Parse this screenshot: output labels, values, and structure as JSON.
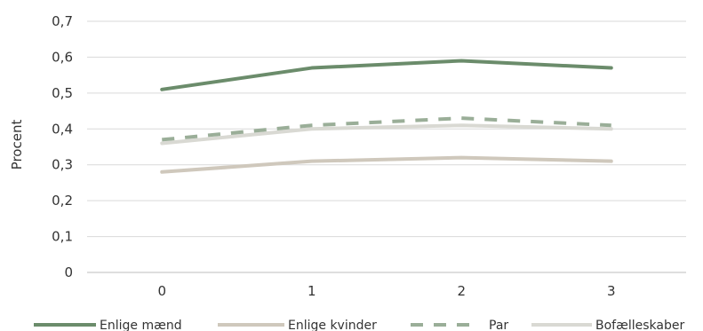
{
  "chart_data": {
    "type": "line",
    "x": [
      "0",
      "1",
      "2",
      "3"
    ],
    "ylabel": "Procent",
    "ylim": [
      0,
      0.7
    ],
    "yticks": [
      "0",
      "0,1",
      "0,2",
      "0,3",
      "0,4",
      "0,5",
      "0,6",
      "0,7"
    ],
    "grid": true,
    "legend": "bottom",
    "series": [
      {
        "name": "Enlige mænd",
        "values": [
          0.51,
          0.57,
          0.59,
          0.57
        ],
        "color": "#6b8c6b",
        "dash": false
      },
      {
        "name": "Enlige kvinder",
        "values": [
          0.28,
          0.31,
          0.32,
          0.31
        ],
        "color": "#cfc8bc",
        "dash": false
      },
      {
        "name": "Par",
        "values": [
          0.37,
          0.41,
          0.43,
          0.41
        ],
        "color": "#9aae98",
        "dash": true
      },
      {
        "name": "Bofælleskaber",
        "values": [
          0.36,
          0.4,
          0.41,
          0.4
        ],
        "color": "#d9d9d3",
        "dash": false
      }
    ]
  }
}
